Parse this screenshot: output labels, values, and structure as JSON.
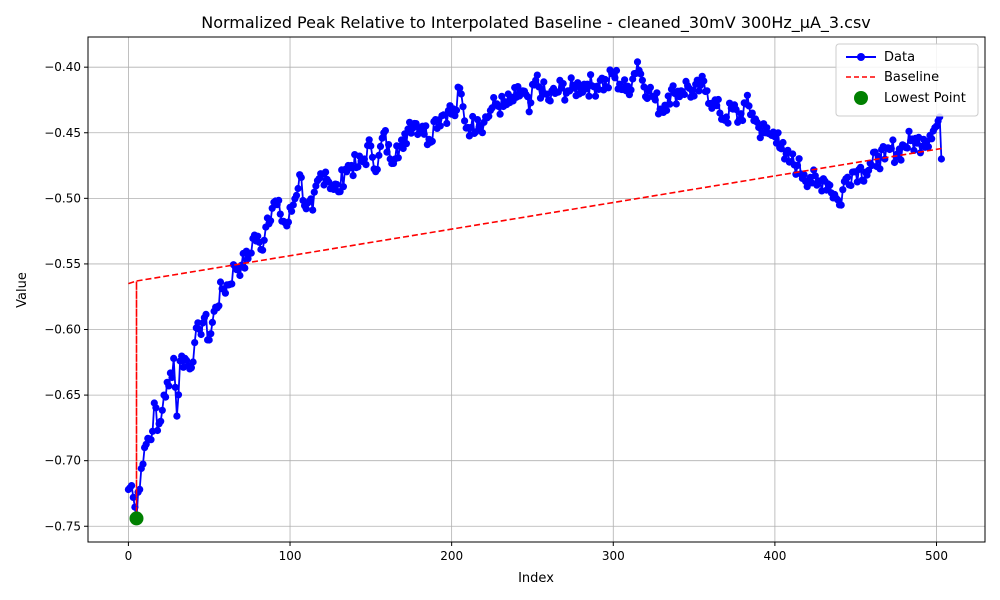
{
  "chart_data": {
    "type": "line",
    "title": "Normalized Peak Relative to Interpolated Baseline - cleaned_30mV 300Hz_µA_3.csv",
    "xlabel": "Index",
    "ylabel": "Value",
    "xlim": [
      -25,
      530
    ],
    "ylim": [
      -0.762,
      -0.377
    ],
    "xticks": [
      0,
      100,
      200,
      300,
      400,
      500
    ],
    "yticks": [
      -0.75,
      -0.7,
      -0.65,
      -0.6,
      -0.55,
      -0.5,
      -0.45,
      -0.4
    ],
    "xtick_labels": [
      "0",
      "100",
      "200",
      "300",
      "400",
      "500"
    ],
    "ytick_labels": [
      "−0.75",
      "−0.70",
      "−0.65",
      "−0.60",
      "−0.55",
      "−0.50",
      "−0.45",
      "−0.40"
    ],
    "grid": true,
    "legend_position": "top-right",
    "colors": {
      "data": "#0000ff",
      "baseline": "#ff0000",
      "lowest": "#008000"
    },
    "legend": [
      {
        "label": "Data",
        "style": "line-marker"
      },
      {
        "label": "Baseline",
        "style": "dashed"
      },
      {
        "label": "Lowest Point",
        "style": "marker"
      }
    ],
    "data_anchors": [
      [
        0,
        -0.722
      ],
      [
        2,
        -0.719
      ],
      [
        3,
        -0.728
      ],
      [
        5,
        -0.745
      ],
      [
        6,
        -0.724
      ],
      [
        8,
        -0.706
      ],
      [
        10,
        -0.69
      ],
      [
        12,
        -0.683
      ],
      [
        14,
        -0.684
      ],
      [
        16,
        -0.656
      ],
      [
        18,
        -0.677
      ],
      [
        20,
        -0.67
      ],
      [
        22,
        -0.65
      ],
      [
        25,
        -0.643
      ],
      [
        28,
        -0.622
      ],
      [
        30,
        -0.666
      ],
      [
        32,
        -0.624
      ],
      [
        35,
        -0.622
      ],
      [
        38,
        -0.63
      ],
      [
        41,
        -0.61
      ],
      [
        44,
        -0.6
      ],
      [
        47,
        -0.591
      ],
      [
        50,
        -0.608
      ],
      [
        54,
        -0.583
      ],
      [
        58,
        -0.569
      ],
      [
        62,
        -0.566
      ],
      [
        66,
        -0.552
      ],
      [
        70,
        -0.551
      ],
      [
        74,
        -0.546
      ],
      [
        78,
        -0.528
      ],
      [
        82,
        -0.539
      ],
      [
        86,
        -0.515
      ],
      [
        90,
        -0.503
      ],
      [
        94,
        -0.512
      ],
      [
        98,
        -0.521
      ],
      [
        102,
        -0.505
      ],
      [
        106,
        -0.482
      ],
      [
        110,
        -0.508
      ],
      [
        114,
        -0.509
      ],
      [
        118,
        -0.485
      ],
      [
        122,
        -0.48
      ],
      [
        126,
        -0.49
      ],
      [
        130,
        -0.495
      ],
      [
        134,
        -0.478
      ],
      [
        138,
        -0.475
      ],
      [
        142,
        -0.476
      ],
      [
        146,
        -0.47
      ],
      [
        150,
        -0.46
      ],
      [
        154,
        -0.478
      ],
      [
        158,
        -0.45
      ],
      [
        162,
        -0.47
      ],
      [
        166,
        -0.46
      ],
      [
        170,
        -0.462
      ],
      [
        174,
        -0.442
      ],
      [
        178,
        -0.443
      ],
      [
        182,
        -0.445
      ],
      [
        186,
        -0.455
      ],
      [
        190,
        -0.44
      ],
      [
        194,
        -0.437
      ],
      [
        198,
        -0.433
      ],
      [
        202,
        -0.437
      ],
      [
        205,
        -0.416
      ],
      [
        208,
        -0.441
      ],
      [
        212,
        -0.446
      ],
      [
        216,
        -0.44
      ],
      [
        220,
        -0.442
      ],
      [
        224,
        -0.433
      ],
      [
        228,
        -0.428
      ],
      [
        232,
        -0.43
      ],
      [
        236,
        -0.427
      ],
      [
        240,
        -0.423
      ],
      [
        244,
        -0.418
      ],
      [
        248,
        -0.434
      ],
      [
        252,
        -0.41
      ],
      [
        256,
        -0.418
      ],
      [
        260,
        -0.425
      ],
      [
        264,
        -0.42
      ],
      [
        268,
        -0.416
      ],
      [
        272,
        -0.418
      ],
      [
        276,
        -0.416
      ],
      [
        280,
        -0.414
      ],
      [
        284,
        -0.413
      ],
      [
        288,
        -0.415
      ],
      [
        292,
        -0.41
      ],
      [
        296,
        -0.415
      ],
      [
        300,
        -0.404
      ],
      [
        304,
        -0.413
      ],
      [
        308,
        -0.418
      ],
      [
        312,
        -0.409
      ],
      [
        315,
        -0.396
      ],
      [
        318,
        -0.41
      ],
      [
        322,
        -0.418
      ],
      [
        326,
        -0.425
      ],
      [
        330,
        -0.432
      ],
      [
        334,
        -0.422
      ],
      [
        338,
        -0.42
      ],
      [
        342,
        -0.418
      ],
      [
        346,
        -0.414
      ],
      [
        350,
        -0.422
      ],
      [
        354,
        -0.414
      ],
      [
        358,
        -0.418
      ],
      [
        362,
        -0.427
      ],
      [
        366,
        -0.435
      ],
      [
        370,
        -0.438
      ],
      [
        374,
        -0.432
      ],
      [
        378,
        -0.44
      ],
      [
        382,
        -0.428
      ],
      [
        386,
        -0.435
      ],
      [
        390,
        -0.446
      ],
      [
        394,
        -0.45
      ],
      [
        398,
        -0.452
      ],
      [
        402,
        -0.45
      ],
      [
        406,
        -0.47
      ],
      [
        410,
        -0.472
      ],
      [
        414,
        -0.475
      ],
      [
        418,
        -0.482
      ],
      [
        422,
        -0.484
      ],
      [
        426,
        -0.49
      ],
      [
        430,
        -0.485
      ],
      [
        434,
        -0.49
      ],
      [
        438,
        -0.5
      ],
      [
        440,
        -0.505
      ],
      [
        444,
        -0.485
      ],
      [
        448,
        -0.48
      ],
      [
        452,
        -0.478
      ],
      [
        456,
        -0.48
      ],
      [
        460,
        -0.475
      ],
      [
        464,
        -0.468
      ],
      [
        468,
        -0.47
      ],
      [
        472,
        -0.462
      ],
      [
        476,
        -0.466
      ],
      [
        480,
        -0.46
      ],
      [
        484,
        -0.456
      ],
      [
        488,
        -0.458
      ],
      [
        492,
        -0.455
      ],
      [
        496,
        -0.452
      ],
      [
        500,
        -0.445
      ],
      [
        502,
        -0.438
      ],
      [
        503,
        -0.47
      ]
    ],
    "baseline": [
      [
        0,
        -0.565
      ],
      [
        5,
        -0.563
      ],
      [
        5,
        -0.745
      ],
      [
        5,
        -0.563
      ],
      [
        503,
        -0.462
      ]
    ],
    "lowest_point": [
      5,
      -0.744
    ]
  }
}
